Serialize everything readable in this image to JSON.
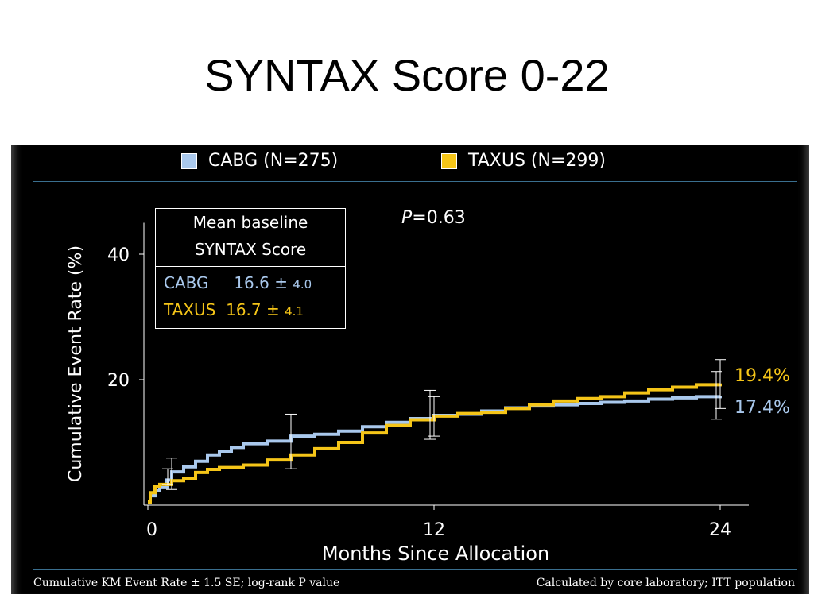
{
  "slide": {
    "title": "SYNTAX Score 0-22"
  },
  "legend": [
    {
      "label": "CABG (N=275)",
      "color": "#a9c8ec"
    },
    {
      "label": "TAXUS (N=299)",
      "color": "#f5c518"
    }
  ],
  "pvalue": {
    "symbol": "P",
    "text": "=0.63"
  },
  "baseline": {
    "heading_line1": "Mean baseline",
    "heading_line2": "SYNTAX Score",
    "rows": [
      {
        "arm": "CABG",
        "mean": "16.6",
        "pm": "±",
        "sd": "4.0",
        "color": "#a9c8ec"
      },
      {
        "arm": "TAXUS",
        "mean": "16.7",
        "pm": "±",
        "sd": "4.1",
        "color": "#f5c518"
      }
    ]
  },
  "footnotes": {
    "left": "Cumulative KM Event Rate ± 1.5 SE; log-rank P value",
    "right": "Calculated by core laboratory; ITT population"
  },
  "chart_data": {
    "type": "line",
    "title": "SYNTAX Score 0-22",
    "xlabel": "Months Since Allocation",
    "ylabel": "Cumulative Event Rate (%)",
    "xlim": [
      0,
      25
    ],
    "ylim": [
      0,
      45
    ],
    "xticks": [
      0,
      12,
      24
    ],
    "yticks": [
      20,
      40
    ],
    "grid": false,
    "legend_position": "top",
    "series": [
      {
        "name": "CABG (N=275)",
        "color": "#a9c8ec",
        "end_label": "17.4%",
        "points": [
          [
            0,
            0.5
          ],
          [
            0.1,
            1.5
          ],
          [
            0.3,
            2.3
          ],
          [
            0.5,
            2.8
          ],
          [
            0.8,
            4.0
          ],
          [
            1,
            5.3
          ],
          [
            1.5,
            6.1
          ],
          [
            2,
            7.0
          ],
          [
            2.5,
            8.0
          ],
          [
            3,
            8.6
          ],
          [
            3.5,
            9.2
          ],
          [
            4,
            9.8
          ],
          [
            5,
            10.2
          ],
          [
            6,
            11.0
          ],
          [
            7,
            11.3
          ],
          [
            8,
            11.8
          ],
          [
            9,
            12.5
          ],
          [
            10,
            13.2
          ],
          [
            11,
            13.8
          ],
          [
            12,
            14.3
          ],
          [
            13,
            14.5
          ],
          [
            14,
            15.0
          ],
          [
            15,
            15.5
          ],
          [
            16,
            15.8
          ],
          [
            17,
            16.0
          ],
          [
            18,
            16.2
          ],
          [
            19,
            16.4
          ],
          [
            20,
            16.6
          ],
          [
            21,
            16.9
          ],
          [
            22,
            17.1
          ],
          [
            23,
            17.3
          ],
          [
            24,
            17.4
          ]
        ]
      },
      {
        "name": "TAXUS (N=299)",
        "color": "#f5c518",
        "end_label": "19.4%",
        "points": [
          [
            0,
            0.5
          ],
          [
            0.1,
            2.0
          ],
          [
            0.3,
            3.0
          ],
          [
            0.5,
            3.3
          ],
          [
            1,
            3.9
          ],
          [
            1.5,
            4.3
          ],
          [
            2,
            5.2
          ],
          [
            2.5,
            5.7
          ],
          [
            3,
            6.0
          ],
          [
            4,
            6.4
          ],
          [
            5,
            7.2
          ],
          [
            6,
            8.0
          ],
          [
            7,
            9.0
          ],
          [
            8,
            10.0
          ],
          [
            9,
            11.5
          ],
          [
            10,
            12.7
          ],
          [
            11,
            13.6
          ],
          [
            12,
            14.2
          ],
          [
            13,
            14.6
          ],
          [
            14,
            14.8
          ],
          [
            15,
            15.4
          ],
          [
            16,
            16.0
          ],
          [
            17,
            16.6
          ],
          [
            18,
            17.0
          ],
          [
            19,
            17.3
          ],
          [
            20,
            17.9
          ],
          [
            21,
            18.4
          ],
          [
            22,
            18.8
          ],
          [
            23,
            19.2
          ],
          [
            24,
            19.4
          ]
        ]
      }
    ],
    "error_bars": [
      {
        "x": 1,
        "low": 2.5,
        "high": 7.5
      },
      {
        "x": 1,
        "low": 3.3,
        "high": 5.8
      },
      {
        "x": 6,
        "low": 5.8,
        "high": 14.5
      },
      {
        "x": 12,
        "low": 10.5,
        "high": 18.3
      },
      {
        "x": 12,
        "low": 11.0,
        "high": 17.3
      },
      {
        "x": 24,
        "low": 13.7,
        "high": 21.3
      },
      {
        "x": 24,
        "low": 15.4,
        "high": 23.2
      }
    ]
  }
}
